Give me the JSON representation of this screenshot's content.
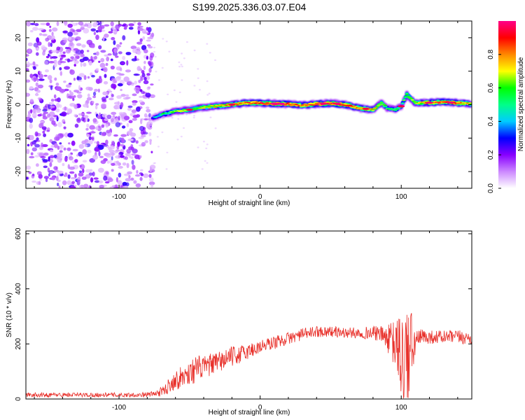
{
  "chart_data": [
    {
      "type": "heatmap",
      "title": "S199.2025.336.03.07.E04",
      "xlabel": "Height of straight line (km)",
      "ylabel": "Frequency (Hz)",
      "xlim": [
        -166,
        150
      ],
      "ylim": [
        -25,
        25
      ],
      "x_ticks": [
        -100,
        0,
        100
      ],
      "y_ticks": [
        -20,
        -10,
        0,
        10,
        20
      ],
      "colorbar": {
        "label": "Normalized spectral amplitude",
        "range": [
          0.0,
          1.0
        ],
        "ticks": [
          "0.0",
          "0.2",
          "0.4",
          "0.6",
          "0.8"
        ],
        "colormap": [
          "#ffffff",
          "#cc88ff",
          "#8800ff",
          "#0000ff",
          "#00ccff",
          "#00ff88",
          "#00ff00",
          "#ffff00",
          "#ff8800",
          "#ff0000",
          "#ff0088"
        ]
      },
      "noise_region_x": [
        -166,
        -76
      ],
      "ridge": {
        "x": [
          -76,
          -70,
          -60,
          -50,
          -40,
          -30,
          -20,
          -10,
          0,
          10,
          20,
          30,
          40,
          50,
          60,
          70,
          80,
          86,
          90,
          96,
          100,
          104,
          110,
          120,
          130,
          140,
          150
        ],
        "hz": [
          -4,
          -3,
          -2,
          -1.5,
          -0.8,
          -0.4,
          0,
          0.5,
          0.5,
          0.3,
          0.2,
          -0.2,
          0.2,
          0.4,
          0,
          -1,
          -1.5,
          0.5,
          -1,
          -1.5,
          -0.5,
          3,
          0.5,
          0.6,
          0.8,
          0.5,
          0.3
        ],
        "amplitude": [
          0.3,
          0.45,
          0.55,
          0.6,
          0.65,
          0.7,
          0.75,
          0.8,
          0.85,
          0.9,
          0.85,
          0.8,
          0.85,
          0.9,
          0.85,
          0.8,
          0.7,
          0.6,
          0.5,
          0.55,
          0.5,
          0.6,
          0.65,
          0.8,
          0.85,
          0.8,
          0.7
        ]
      }
    },
    {
      "type": "line",
      "xlabel": "Height of straight line (km)",
      "ylabel": "SNR (10 * v/v)",
      "xlim": [
        -166,
        150
      ],
      "ylim": [
        0,
        610
      ],
      "x_ticks": [
        -100,
        0,
        100
      ],
      "y_ticks": [
        0,
        200,
        400,
        600
      ],
      "series": [
        {
          "name": "SNR",
          "color": "#e8302a",
          "x": [
            -166,
            -140,
            -110,
            -85,
            -75,
            -68,
            -62,
            -55,
            -50,
            -45,
            -40,
            -35,
            -30,
            -25,
            -20,
            -15,
            -10,
            -5,
            0,
            10,
            20,
            30,
            40,
            50,
            60,
            70,
            80,
            86,
            90,
            94,
            98,
            100,
            102,
            104,
            106,
            108,
            110,
            115,
            120,
            130,
            140,
            150
          ],
          "mean": [
            15,
            15,
            15,
            15,
            18,
            30,
            65,
            80,
            95,
            110,
            115,
            125,
            130,
            145,
            155,
            160,
            170,
            180,
            190,
            205,
            220,
            235,
            245,
            245,
            240,
            240,
            240,
            235,
            220,
            205,
            180,
            150,
            140,
            130,
            150,
            180,
            210,
            225,
            225,
            225,
            225,
            220
          ],
          "noise": [
            8,
            8,
            8,
            8,
            10,
            20,
            35,
            40,
            45,
            50,
            40,
            40,
            40,
            40,
            35,
            35,
            30,
            30,
            25,
            25,
            22,
            22,
            20,
            20,
            20,
            20,
            25,
            30,
            45,
            80,
            120,
            180,
            240,
            260,
            200,
            120,
            40,
            30,
            25,
            25,
            25,
            25
          ]
        }
      ]
    }
  ]
}
